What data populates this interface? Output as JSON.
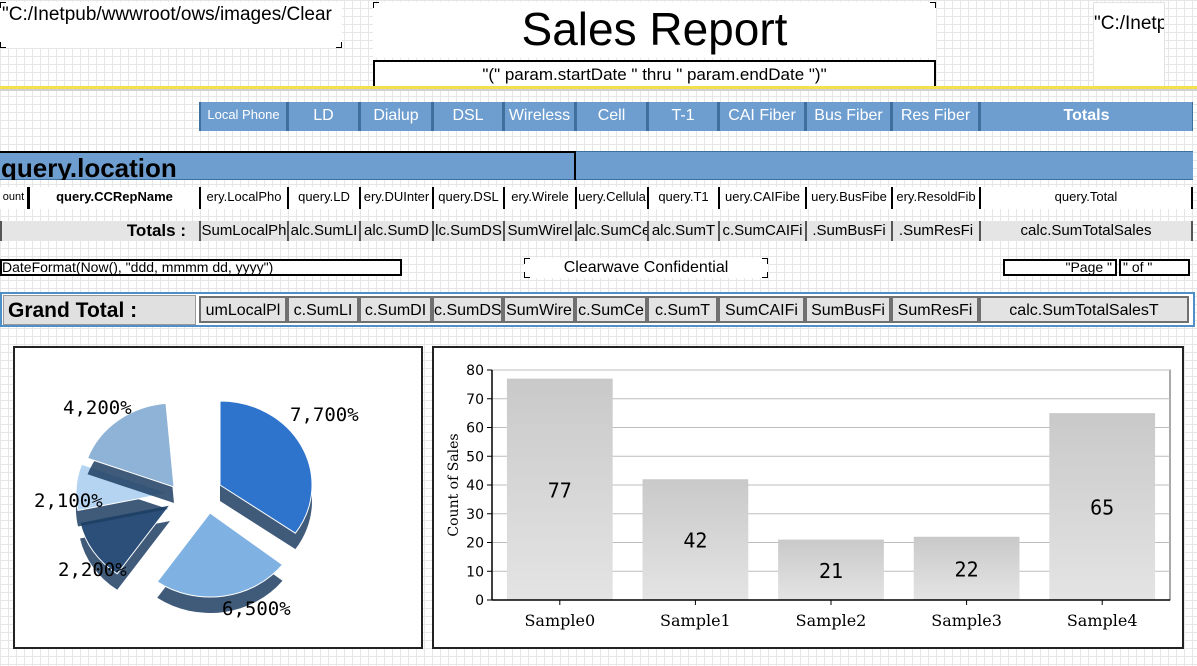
{
  "header": {
    "path_left": "\"C:/Inetpub/wwwroot/ows/images/Clear",
    "title": "Sales Report",
    "date_range": "\"(\"  param.startDate  \" thru \"  param.endDate  \")\"",
    "path_right": "\"C:/Inetp"
  },
  "columns": [
    "Local Phone",
    "LD",
    "Dialup",
    "DSL",
    "Wireless",
    "Cell",
    "T-1",
    "CAI Fiber",
    "Bus Fiber",
    "Res Fiber",
    "Totals"
  ],
  "location": {
    "label": "query.location"
  },
  "detail": {
    "count": "ount",
    "rep_name": "query.CCRepName",
    "fields": [
      "ery.LocalPho",
      "query.LD",
      "ery.DUInter",
      "query.DSL",
      "ery.Wirele",
      "uery.Cellula",
      "query.T1",
      "uery.CAIFibe",
      "uery.BusFibe",
      "ery.ResoldFib",
      "query.Total"
    ]
  },
  "totals": {
    "label": "Totals :",
    "fields": [
      "SumLocalPh",
      "alc.SumLI",
      "alc.SumD",
      "lc.SumDS",
      "SumWirel",
      "alc.SumCe",
      "alc.SumT",
      "c.SumCAIFi",
      ".SumBusFi",
      ".SumResFi",
      "calc.SumTotalSales"
    ]
  },
  "footer": {
    "date_expr": "DateFormat(Now(), \"ddd, mmmm dd, yyyy\")",
    "confidential": "Clearwave Confidential",
    "page": "\"Page \"",
    "of": "\" of \""
  },
  "grand_total": {
    "label": "Grand Total :",
    "fields": [
      "umLocalPl",
      "c.SumLI",
      "c.SumDI",
      "c.SumDS",
      "SumWire",
      "c.SumCe",
      "c.SumT",
      "SumCAIFi",
      "SumBusFi",
      "SumResFi",
      "calc.SumTotalSalesT"
    ]
  },
  "pie": {
    "labels": [
      "7,700%",
      "6,500%",
      "2,200%",
      "2,100%",
      "4,200%"
    ],
    "colors": [
      "#2f74cc",
      "#7fb2e2",
      "#2b4f78",
      "#b5d4f2",
      "#8fb3d6"
    ]
  },
  "chart_data": {
    "type": "bar",
    "categories": [
      "Sample0",
      "Sample1",
      "Sample2",
      "Sample3",
      "Sample4"
    ],
    "values": [
      77,
      42,
      21,
      22,
      65
    ],
    "ylabel": "Count of Sales",
    "xlabel": "",
    "ylim": [
      0,
      80
    ],
    "yticks": [
      0,
      10,
      20,
      30,
      40,
      50,
      60,
      70,
      80
    ],
    "grid": true,
    "bar_color": "#d3d3d3"
  }
}
